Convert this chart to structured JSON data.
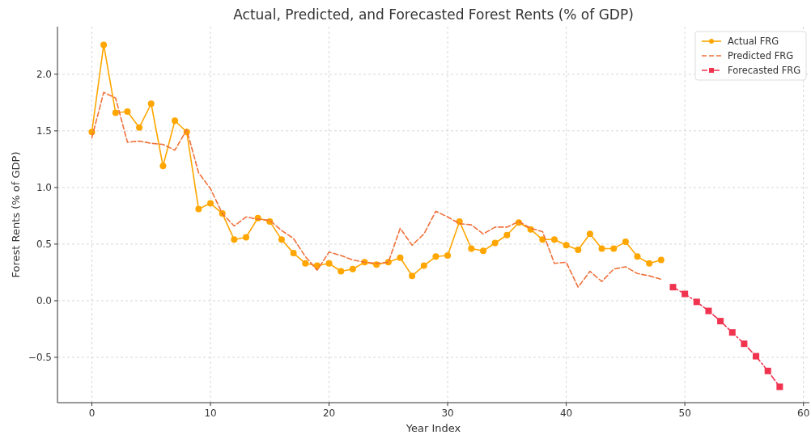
{
  "chart_data": {
    "type": "line",
    "title": "Actual, Predicted, and Forecasted Forest Rents (% of GDP)",
    "xlabel": "Year Index",
    "ylabel": "Forest Rents (% of GDP)",
    "xlim": [
      -2.9,
      60.5
    ],
    "ylim": [
      -0.9,
      2.42
    ],
    "xticks": [
      0,
      10,
      20,
      30,
      40,
      50,
      60
    ],
    "yticks": [
      {
        "value": -0.5,
        "label": "−0.5"
      },
      {
        "value": 0,
        "label": "0.0"
      },
      0.5,
      {
        "value": 1,
        "label": "1.0"
      },
      1.5,
      {
        "value": 2,
        "label": "2.0"
      }
    ],
    "grid": true,
    "legend": "top right",
    "series": [
      {
        "name": "Actual FRG",
        "color": "#ffa600",
        "marker": "circle",
        "line_style": "solid",
        "x": [
          0,
          1,
          2,
          3,
          4,
          5,
          6,
          7,
          8,
          9,
          10,
          11,
          12,
          13,
          14,
          15,
          16,
          17,
          18,
          19,
          20,
          21,
          22,
          23,
          24,
          25,
          26,
          27,
          28,
          29,
          30,
          31,
          32,
          33,
          34,
          35,
          36,
          37,
          38,
          39,
          40,
          41,
          42,
          43,
          44,
          45,
          46,
          47,
          48
        ],
        "values": [
          1.49,
          2.26,
          1.66,
          1.67,
          1.53,
          1.74,
          1.19,
          1.59,
          1.49,
          0.81,
          0.86,
          0.77,
          0.54,
          0.56,
          0.73,
          0.7,
          0.54,
          0.42,
          0.33,
          0.31,
          0.33,
          0.26,
          0.28,
          0.34,
          0.32,
          0.34,
          0.38,
          0.22,
          0.31,
          0.39,
          0.4,
          0.7,
          0.46,
          0.44,
          0.51,
          0.58,
          0.69,
          0.63,
          0.54,
          0.54,
          0.49,
          0.45,
          0.59,
          0.46,
          0.46,
          0.52,
          0.39,
          0.33,
          0.36
        ]
      },
      {
        "name": "Predicted FRG",
        "color": "#f0703a",
        "marker": "none",
        "line_style": "dashed",
        "x": [
          0,
          1,
          2,
          3,
          4,
          5,
          6,
          7,
          8,
          9,
          10,
          11,
          12,
          13,
          14,
          15,
          16,
          17,
          18,
          19,
          20,
          21,
          22,
          23,
          24,
          25,
          26,
          27,
          28,
          29,
          30,
          31,
          32,
          33,
          34,
          35,
          36,
          37,
          38,
          39,
          40,
          41,
          42,
          43,
          44,
          45,
          46,
          47,
          48
        ],
        "values": [
          1.44,
          1.84,
          1.79,
          1.4,
          1.41,
          1.39,
          1.38,
          1.33,
          1.51,
          1.13,
          0.99,
          0.77,
          0.66,
          0.74,
          0.72,
          0.71,
          0.62,
          0.55,
          0.39,
          0.27,
          0.43,
          0.4,
          0.36,
          0.34,
          0.33,
          0.34,
          0.64,
          0.49,
          0.59,
          0.79,
          0.74,
          0.68,
          0.67,
          0.59,
          0.65,
          0.65,
          0.7,
          0.64,
          0.61,
          0.33,
          0.34,
          0.12,
          0.26,
          0.17,
          0.28,
          0.3,
          0.24,
          0.22,
          0.19
        ]
      },
      {
        "name": "Forecasted FRG",
        "color": "#f0334f",
        "marker": "square",
        "line_style": "dashdot",
        "x": [
          49,
          50,
          51,
          52,
          53,
          54,
          55,
          56,
          57,
          58
        ],
        "values": [
          0.12,
          0.06,
          -0.01,
          -0.09,
          -0.18,
          -0.28,
          -0.38,
          -0.49,
          -0.62,
          -0.76
        ]
      }
    ]
  }
}
